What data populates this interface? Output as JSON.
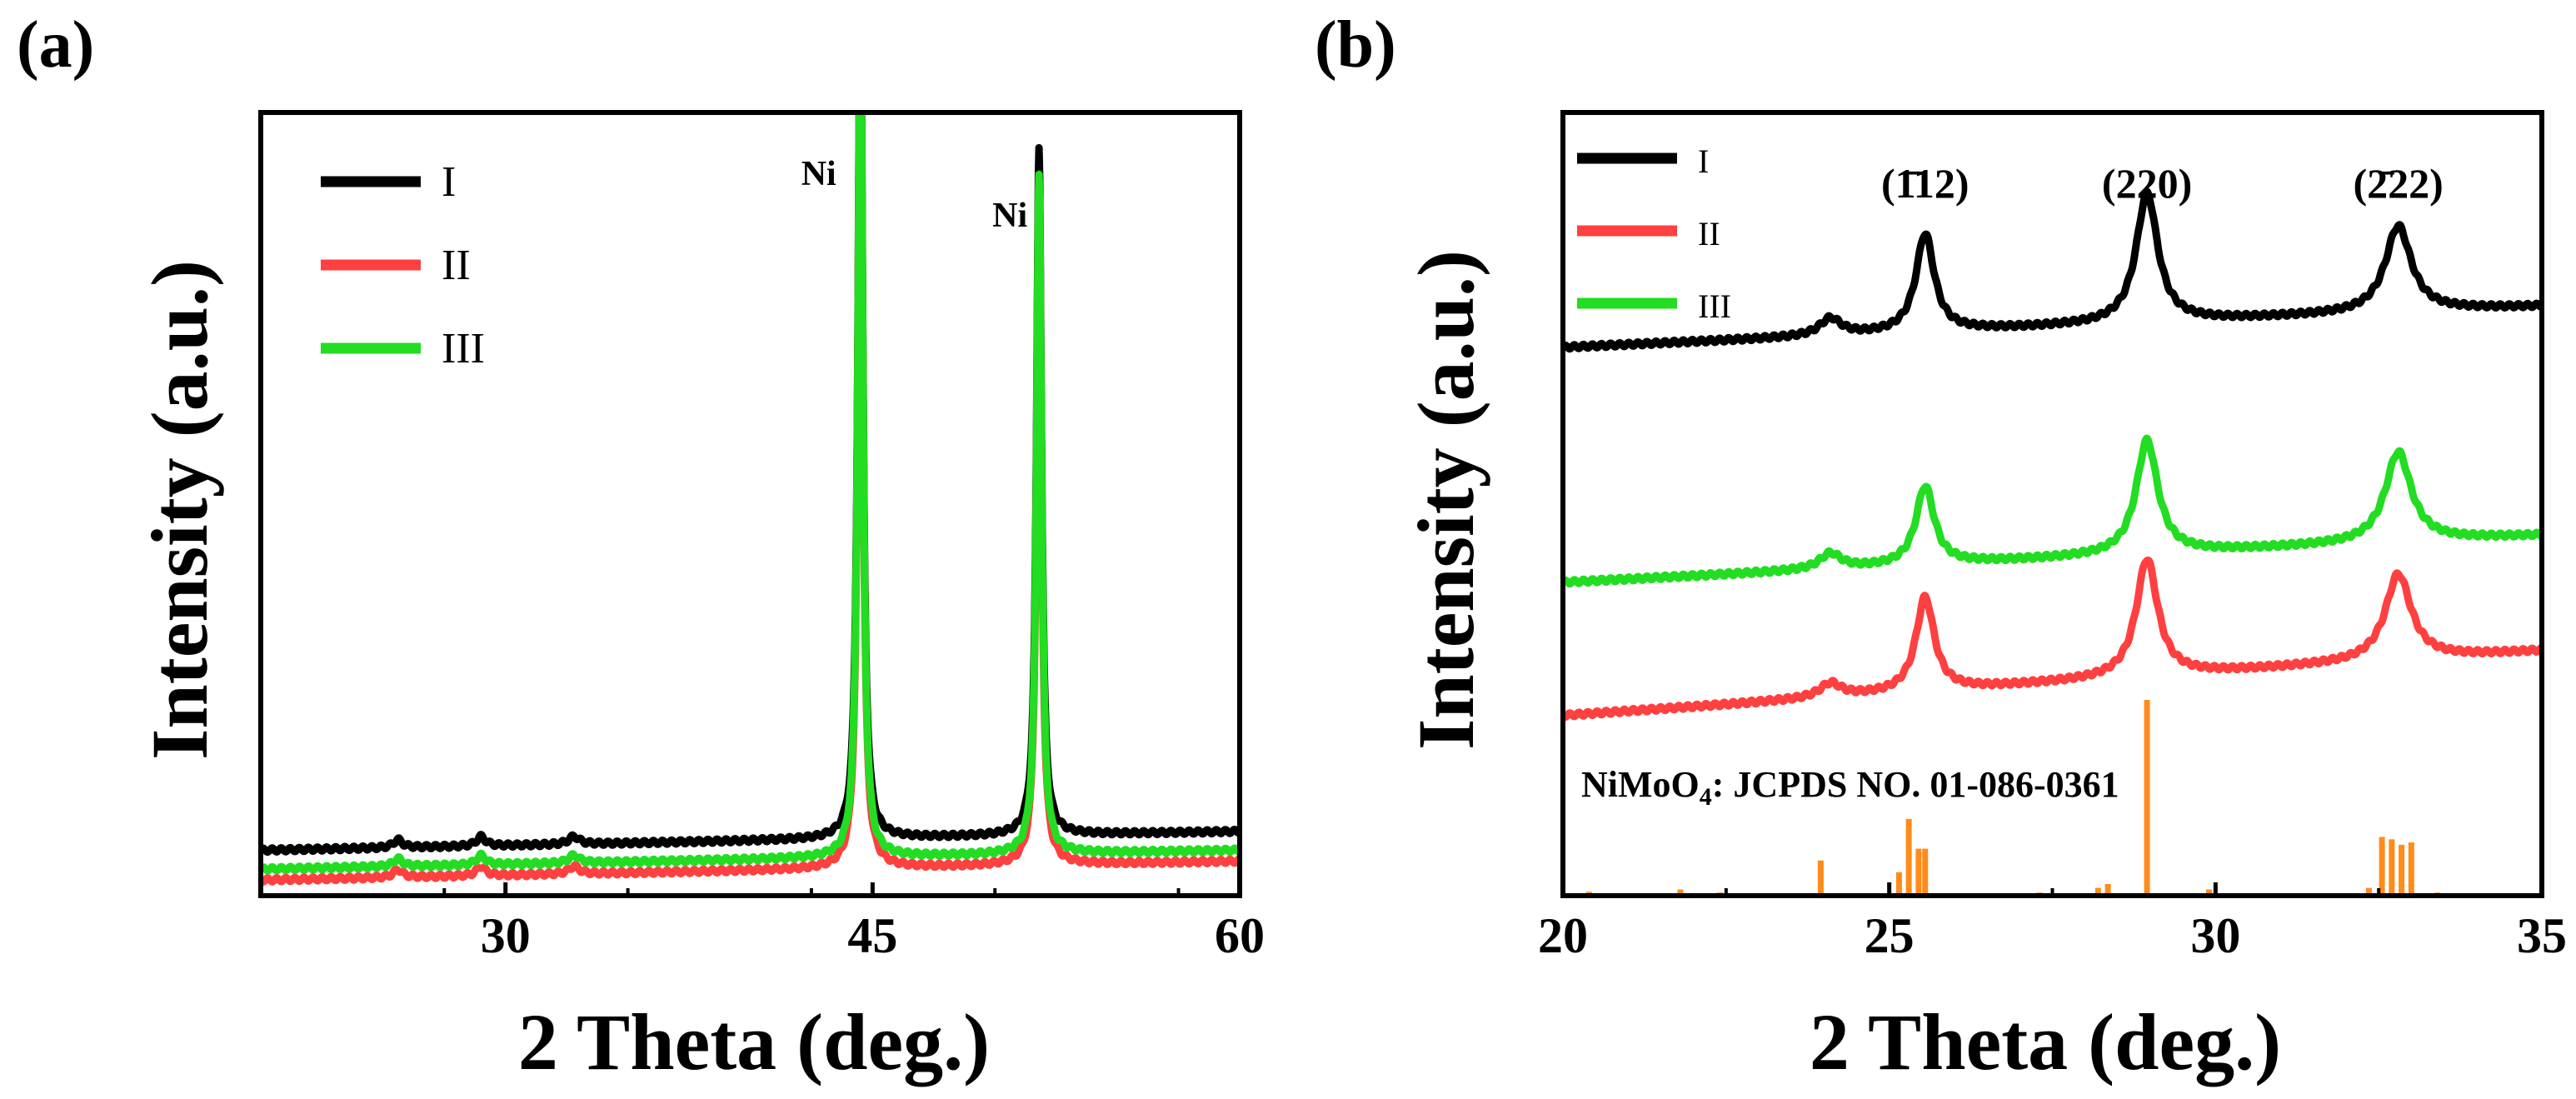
{
  "chart_data": [
    {
      "panel_label": "(a)",
      "type": "line",
      "xlabel": "2 Theta (deg.)",
      "ylabel": "Intensity (a.u.)",
      "xlim": [
        20,
        60
      ],
      "ylim": [
        0,
        1
      ],
      "x_ticks": [
        30,
        45,
        60
      ],
      "x_tick_labels": [
        "30",
        "45",
        "60"
      ],
      "y_ticks_shown": false,
      "legend_position": "top-left",
      "series": [
        {
          "name": "I",
          "color": "#000000",
          "baseline": 0.058,
          "slope": 0.0006,
          "peaks": [
            {
              "x": 25.6,
              "h": 0.01,
              "w": 0.22
            },
            {
              "x": 29.0,
              "h": 0.012,
              "w": 0.22
            },
            {
              "x": 32.8,
              "h": 0.01,
              "w": 0.25
            },
            {
              "x": 44.5,
              "h": 1.1,
              "w": 0.12
            },
            {
              "x": 51.8,
              "h": 0.88,
              "w": 0.12
            }
          ]
        },
        {
          "name": "II",
          "color": "#ff4040",
          "baseline": 0.02,
          "slope": 0.0006,
          "peaks": [
            {
              "x": 25.6,
              "h": 0.01,
              "w": 0.22
            },
            {
              "x": 29.0,
              "h": 0.012,
              "w": 0.22
            },
            {
              "x": 32.8,
              "h": 0.01,
              "w": 0.25
            },
            {
              "x": 44.5,
              "h": 1.1,
              "w": 0.12
            },
            {
              "x": 51.8,
              "h": 0.87,
              "w": 0.12
            }
          ]
        },
        {
          "name": "III",
          "color": "#22dd22",
          "baseline": 0.034,
          "slope": 0.0006,
          "peaks": [
            {
              "x": 25.6,
              "h": 0.01,
              "w": 0.22
            },
            {
              "x": 29.0,
              "h": 0.012,
              "w": 0.22
            },
            {
              "x": 32.8,
              "h": 0.01,
              "w": 0.25
            },
            {
              "x": 44.5,
              "h": 1.1,
              "w": 0.12
            },
            {
              "x": 51.8,
              "h": 0.87,
              "w": 0.12
            }
          ]
        }
      ],
      "annotations": [
        {
          "text": "Ni",
          "x": 44.5
        },
        {
          "text": "Ni",
          "x": 51.8
        }
      ]
    },
    {
      "panel_label": "(b)",
      "type": "line",
      "xlabel": "2 Theta (deg.)",
      "ylabel": "Intensity (a.u.)",
      "xlim": [
        20,
        35
      ],
      "ylim": [
        0,
        1
      ],
      "x_ticks": [
        20,
        25,
        30,
        35
      ],
      "x_tick_labels": [
        "20",
        "25",
        "30",
        "35"
      ],
      "y_ticks_shown": false,
      "legend_position": "top-left",
      "series": [
        {
          "name": "I",
          "color": "#000000",
          "baseline": 0.7,
          "slope": 0.0035,
          "peaks": [
            {
              "x": 24.1,
              "h": 0.022,
              "w": 0.2
            },
            {
              "x": 25.55,
              "h": 0.125,
              "w": 0.17
            },
            {
              "x": 28.95,
              "h": 0.165,
              "w": 0.2
            },
            {
              "x": 32.8,
              "h": 0.11,
              "w": 0.24
            }
          ]
        },
        {
          "name": "II",
          "color": "#ff4040",
          "baseline": 0.23,
          "slope": 0.0055,
          "peaks": [
            {
              "x": 24.1,
              "h": 0.018,
              "w": 0.2
            },
            {
              "x": 25.55,
              "h": 0.12,
              "w": 0.17
            },
            {
              "x": 28.95,
              "h": 0.15,
              "w": 0.2
            },
            {
              "x": 32.8,
              "h": 0.11,
              "w": 0.24
            }
          ]
        },
        {
          "name": "III",
          "color": "#22dd22",
          "baseline": 0.4,
          "slope": 0.004,
          "peaks": [
            {
              "x": 24.1,
              "h": 0.02,
              "w": 0.2
            },
            {
              "x": 25.55,
              "h": 0.1,
              "w": 0.17
            },
            {
              "x": 28.95,
              "h": 0.145,
              "w": 0.2
            },
            {
              "x": 32.8,
              "h": 0.115,
              "w": 0.24
            }
          ]
        }
      ],
      "annotations": [
        {
          "text": "(1̄12)",
          "x": 25.55
        },
        {
          "text": "(220)",
          "x": 28.95
        },
        {
          "text": "(2̄22)",
          "x": 32.8
        }
      ],
      "reference_pattern": {
        "label_parts": [
          "NiMoO",
          "4",
          ": JCPDS NO. 01-086-0361"
        ],
        "color": "#ff8c1a",
        "sticks": [
          {
            "x": 20.4,
            "h": 0.005
          },
          {
            "x": 21.8,
            "h": 0.008
          },
          {
            "x": 22.4,
            "h": 0.004
          },
          {
            "x": 23.95,
            "h": 0.045
          },
          {
            "x": 25.15,
            "h": 0.03
          },
          {
            "x": 25.3,
            "h": 0.098
          },
          {
            "x": 25.45,
            "h": 0.06
          },
          {
            "x": 25.55,
            "h": 0.06
          },
          {
            "x": 27.3,
            "h": 0.004
          },
          {
            "x": 28.2,
            "h": 0.01
          },
          {
            "x": 28.35,
            "h": 0.015
          },
          {
            "x": 28.95,
            "h": 0.25
          },
          {
            "x": 29.9,
            "h": 0.008
          },
          {
            "x": 32.35,
            "h": 0.01
          },
          {
            "x": 32.55,
            "h": 0.075
          },
          {
            "x": 32.7,
            "h": 0.072
          },
          {
            "x": 32.85,
            "h": 0.065
          },
          {
            "x": 33.0,
            "h": 0.068
          },
          {
            "x": 33.4,
            "h": 0.004
          }
        ]
      }
    }
  ]
}
